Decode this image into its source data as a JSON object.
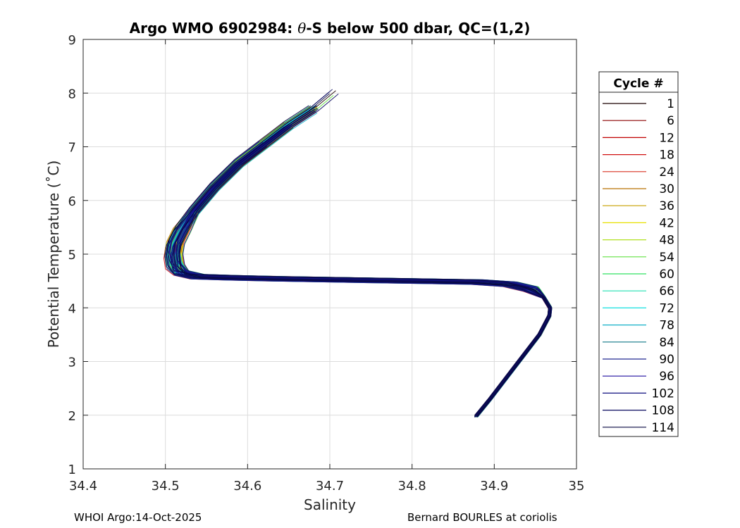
{
  "chart_data": {
    "type": "line",
    "title_prefix": "Argo WMO 6902984: ",
    "title_theta": "θ",
    "title_suffix": "-S below 500 dbar,  QC=(1,2)",
    "xlabel": "Salinity",
    "ylabel": "Potential Temperature (˚C)",
    "xlim": [
      34.4,
      35
    ],
    "ylim": [
      1,
      9
    ],
    "xticks": [
      34.4,
      34.5,
      34.6,
      34.7,
      34.8,
      34.9,
      35
    ],
    "xtick_labels": [
      "34.4",
      "34.5",
      "34.6",
      "34.7",
      "34.8",
      "34.9",
      "35"
    ],
    "yticks": [
      1,
      2,
      3,
      4,
      5,
      6,
      7,
      8,
      9
    ],
    "ytick_labels": [
      "1",
      "2",
      "3",
      "4",
      "5",
      "6",
      "7",
      "8",
      "9"
    ],
    "grid": true,
    "legend": {
      "title": "Cycle #",
      "placement": "right-outside",
      "entries": [
        "1",
        "6",
        "12",
        "18",
        "24",
        "30",
        "36",
        "42",
        "48",
        "54",
        "60",
        "66",
        "72",
        "78",
        "84",
        "90",
        "96",
        "102",
        "108",
        "114"
      ],
      "colors": [
        "#1a0000",
        "#8b0000",
        "#c00000",
        "#d01010",
        "#d83020",
        "#b87000",
        "#c8a000",
        "#e8e000",
        "#b0e020",
        "#60e040",
        "#30e060",
        "#20e0b0",
        "#10e0e0",
        "#10b0c8",
        "#107888",
        "#202890",
        "#2010a0",
        "#101080",
        "#0c0c60",
        "#080840"
      ]
    },
    "base_profile": {
      "salinity": [
        34.878,
        34.895,
        34.915,
        34.935,
        34.955,
        34.967,
        34.968,
        34.96,
        34.945,
        34.92,
        34.88,
        34.8,
        34.72,
        34.64,
        34.58,
        34.54,
        34.52,
        34.512,
        34.51,
        34.512,
        34.52,
        34.535,
        34.56,
        34.59,
        34.62,
        34.65,
        34.68,
        34.705
      ],
      "theta": [
        1.98,
        2.3,
        2.7,
        3.1,
        3.5,
        3.85,
        4.0,
        4.2,
        4.35,
        4.44,
        4.48,
        4.5,
        4.52,
        4.54,
        4.56,
        4.58,
        4.65,
        4.8,
        5.0,
        5.2,
        5.45,
        5.8,
        6.25,
        6.7,
        7.05,
        7.4,
        7.7,
        8.02
      ]
    },
    "profile_count": 114
  },
  "footer": {
    "left": "WHOI Argo:14-Oct-2025",
    "right": "Bernard BOURLES at coriolis"
  }
}
